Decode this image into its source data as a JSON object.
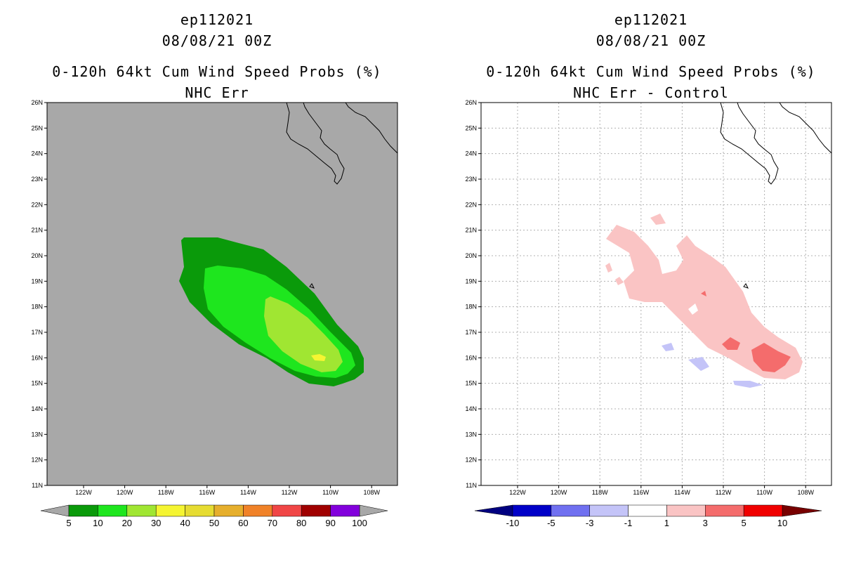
{
  "left_panel": {
    "storm_id": "ep112021",
    "datetime": "08/08/21 00Z",
    "title": "0-120h 64kt Cum Wind Speed Probs (%)",
    "subtitle": "NHC Err",
    "background_color": "#a8a8a8",
    "colorbar": {
      "labels": [
        "5",
        "10",
        "20",
        "30",
        "40",
        "50",
        "60",
        "70",
        "80",
        "90",
        "100"
      ],
      "colors": [
        "#0a9a0a",
        "#1ee61e",
        "#a0e632",
        "#f5f532",
        "#e6dc32",
        "#e6af2d",
        "#f08228",
        "#f04646",
        "#a00000",
        "#8200dc"
      ]
    }
  },
  "right_panel": {
    "storm_id": "ep112021",
    "datetime": "08/08/21 00Z",
    "title": "0-120h 64kt Cum Wind Speed Probs (%)",
    "subtitle": "NHC Err - Control",
    "colorbar": {
      "labels": [
        "-10",
        "-5",
        "-3",
        "-1",
        "1",
        "3",
        "5",
        "10"
      ],
      "colors": [
        "#0000c8",
        "#7070f0",
        "#c4c4f8",
        "#ffffff",
        "#fac4c4",
        "#f46c6c",
        "#f00000"
      ],
      "left_cap": "#000080",
      "right_cap": "#780000"
    }
  },
  "axes": {
    "lat_labels": [
      "26N",
      "25N",
      "24N",
      "23N",
      "22N",
      "21N",
      "20N",
      "19N",
      "18N",
      "17N",
      "16N",
      "15N",
      "14N",
      "13N",
      "12N",
      "11N"
    ],
    "lon_labels": [
      "122W",
      "120W",
      "118W",
      "116W",
      "114W",
      "112W",
      "110W",
      "108W"
    ]
  }
}
